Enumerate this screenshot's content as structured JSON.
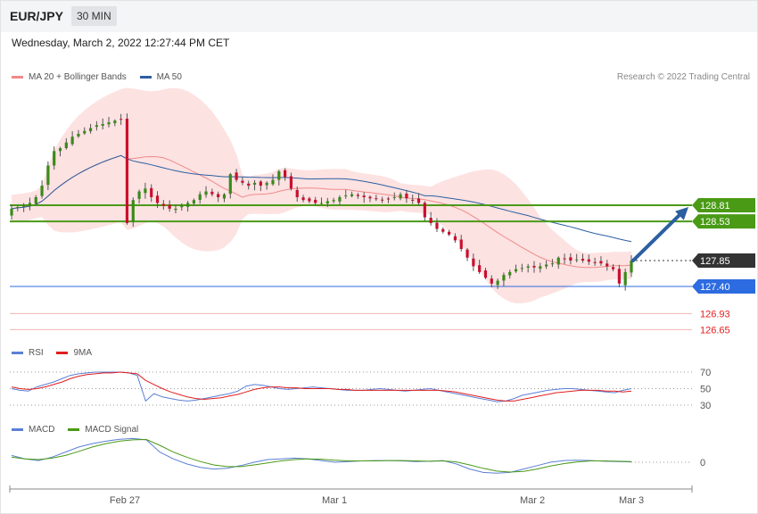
{
  "header": {
    "symbol": "EUR/JPY",
    "timeframe": "30 MIN"
  },
  "datetime": "Wednesday, March 2, 2022 12:27:44 PM CET",
  "copyright": "Research © 2022 Trading Central",
  "legend": {
    "main": [
      {
        "label": "MA 20 + Bollinger Bands",
        "color": "#f08a8a"
      },
      {
        "label": "MA 50",
        "color": "#2c5fa0"
      }
    ],
    "rsi": [
      {
        "label": "RSI",
        "color": "#5b7fd6"
      },
      {
        "label": "9MA",
        "color": "#e01e1e"
      }
    ],
    "macd": [
      {
        "label": "MACD",
        "color": "#5b7fd6"
      },
      {
        "label": "MACD Signal",
        "color": "#4a9a16"
      }
    ]
  },
  "chart_data": [
    {
      "type": "candlestick",
      "pane": "price",
      "x_labels": [
        "Feb 27",
        "Mar 1",
        "Mar 2",
        "Mar 3"
      ],
      "ylim": [
        126.65,
        129.8
      ],
      "grid": false,
      "levels": [
        {
          "value": 128.81,
          "label": "128.81",
          "role": "resistance",
          "color": "#4a9a16"
        },
        {
          "value": 128.53,
          "label": "128.53",
          "role": "resistance",
          "color": "#4a9a16"
        },
        {
          "value": 127.85,
          "label": "127.85",
          "role": "last-price",
          "color": "#333333"
        },
        {
          "value": 127.4,
          "label": "127.40",
          "role": "pivot",
          "color": "#2d6be0"
        },
        {
          "value": 126.93,
          "label": "126.93",
          "role": "support",
          "color": "#e02020"
        },
        {
          "value": 126.65,
          "label": "126.65",
          "role": "support",
          "color": "#e02020"
        }
      ],
      "close_series": [
        128.75,
        128.78,
        128.8,
        128.85,
        128.95,
        129.15,
        129.5,
        129.75,
        129.8,
        129.9,
        130.0,
        130.05,
        130.1,
        130.15,
        130.2,
        130.22,
        130.25,
        130.28,
        130.3,
        128.5,
        128.9,
        129.05,
        129.1,
        128.95,
        128.85,
        128.8,
        128.75,
        128.75,
        128.8,
        128.85,
        128.9,
        129.0,
        129.05,
        129.0,
        128.95,
        129.0,
        129.35,
        129.25,
        129.2,
        129.15,
        129.2,
        129.15,
        129.2,
        129.25,
        129.4,
        129.3,
        129.1,
        128.95,
        128.9,
        128.88,
        128.85,
        128.85,
        128.88,
        128.9,
        128.95,
        128.98,
        129.0,
        128.97,
        128.95,
        128.93,
        128.92,
        128.9,
        128.92,
        128.95,
        129.0,
        128.93,
        128.9,
        128.85,
        128.6,
        128.5,
        128.4,
        128.35,
        128.3,
        128.2,
        128.05,
        127.9,
        127.75,
        127.65,
        127.55,
        127.45,
        127.5,
        127.6,
        127.65,
        127.7,
        127.72,
        127.75,
        127.73,
        127.75,
        127.78,
        127.8,
        127.9,
        127.88,
        127.85,
        127.87,
        127.85,
        127.83,
        127.82,
        127.8,
        127.75,
        127.7,
        127.45,
        127.65,
        127.85
      ],
      "trend_arrow": {
        "from": 127.85,
        "to": 128.81,
        "direction": "up"
      }
    },
    {
      "type": "line",
      "pane": "rsi",
      "ylim": [
        20,
        80
      ],
      "ticks": [
        "70",
        "50",
        "30"
      ],
      "levels": [
        70,
        50,
        30
      ],
      "series": [
        {
          "name": "RSI",
          "values": [
            50,
            48,
            47,
            52,
            55,
            58,
            62,
            66,
            68,
            69,
            70,
            70,
            70,
            70,
            69,
            66,
            35,
            44,
            40,
            38,
            36,
            35,
            36,
            38,
            40,
            42,
            44,
            47,
            53,
            55,
            54,
            52,
            50,
            49,
            50,
            51,
            52,
            51,
            50,
            49,
            48,
            48,
            48,
            49,
            50,
            49,
            48,
            47,
            48,
            49,
            50,
            48,
            46,
            44,
            42,
            40,
            38,
            36,
            34,
            35,
            38,
            42,
            44,
            46,
            48,
            49,
            50,
            50,
            49,
            48,
            47,
            46,
            45,
            48,
            50
          ]
        },
        {
          "name": "9MA",
          "values": [
            52,
            50,
            49,
            50,
            52,
            55,
            58,
            62,
            65,
            67,
            68,
            69,
            69,
            70,
            69,
            68,
            60,
            55,
            50,
            46,
            43,
            40,
            38,
            37,
            38,
            39,
            41,
            43,
            46,
            49,
            51,
            52,
            52,
            51,
            51,
            50,
            50,
            50,
            50,
            49,
            49,
            48,
            48,
            48,
            48,
            48,
            48,
            48,
            48,
            48,
            48,
            48,
            47,
            46,
            44,
            42,
            40,
            38,
            36,
            35,
            35,
            37,
            39,
            41,
            43,
            45,
            46,
            47,
            48,
            48,
            48,
            47,
            47,
            46,
            47
          ]
        }
      ]
    },
    {
      "type": "line",
      "pane": "macd",
      "ticks": [
        "0"
      ],
      "series": [
        {
          "name": "MACD",
          "values": [
            0.2,
            0.1,
            0.05,
            0.15,
            0.3,
            0.45,
            0.55,
            0.62,
            0.68,
            0.7,
            0.66,
            0.3,
            0.1,
            -0.05,
            -0.15,
            -0.2,
            -0.18,
            -0.1,
            0,
            0.08,
            0.1,
            0.12,
            0.1,
            0.05,
            0,
            0.02,
            0.04,
            0.05,
            0.05,
            0.04,
            0.02,
            0.03,
            0.05,
            -0.05,
            -0.2,
            -0.3,
            -0.32,
            -0.3,
            -0.2,
            -0.1,
            0,
            0.05,
            0.06,
            0.05,
            0.03,
            0.02,
            0.01
          ]
        },
        {
          "name": "MACD Signal",
          "values": [
            0.15,
            0.1,
            0.08,
            0.12,
            0.2,
            0.32,
            0.45,
            0.55,
            0.62,
            0.66,
            0.67,
            0.5,
            0.3,
            0.15,
            0.02,
            -0.08,
            -0.13,
            -0.13,
            -0.08,
            -0.02,
            0.04,
            0.08,
            0.1,
            0.09,
            0.06,
            0.04,
            0.04,
            0.04,
            0.05,
            0.05,
            0.04,
            0.03,
            0.04,
            0.01,
            -0.08,
            -0.18,
            -0.26,
            -0.29,
            -0.27,
            -0.2,
            -0.11,
            -0.04,
            0.01,
            0.04,
            0.04,
            0.03,
            0.02
          ]
        }
      ]
    }
  ]
}
